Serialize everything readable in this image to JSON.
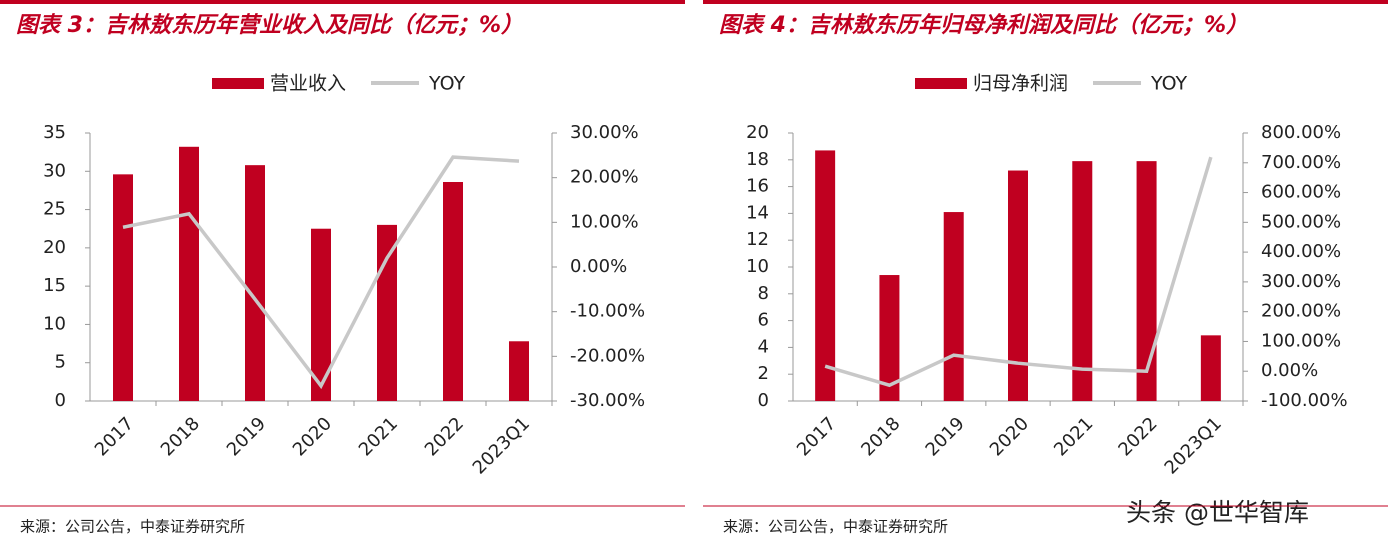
{
  "chart_data": [
    {
      "type": "bar",
      "title": "图表 3：吉林敖东历年营业收入及同比（亿元；%）",
      "categories": [
        "2017",
        "2018",
        "2019",
        "2020",
        "2021",
        "2022",
        "2023Q1"
      ],
      "series": [
        {
          "name": "营业收入",
          "color": "#c00020",
          "values": [
            29.6,
            33.2,
            30.8,
            22.5,
            23.0,
            28.6,
            7.8
          ]
        },
        {
          "name": "YOY",
          "color": "#c8c8c8",
          "type": "line",
          "axis": "y2",
          "values": [
            8.9,
            11.9,
            -7.2,
            -26.6,
            2.0,
            24.6,
            23.7
          ]
        }
      ],
      "ylim": [
        0,
        35
      ],
      "yticks": [
        0,
        5,
        10,
        15,
        20,
        25,
        30,
        35
      ],
      "y2lim": [
        -30,
        30
      ],
      "y2ticks": [
        {
          "value": -30,
          "label": "-30.00%"
        },
        {
          "value": -20,
          "label": "-20.00%"
        },
        {
          "value": -10,
          "label": "-10.00%"
        },
        {
          "value": 0,
          "label": "0.00%"
        },
        {
          "value": 10,
          "label": "10.00%"
        },
        {
          "value": 20,
          "label": "20.00%"
        },
        {
          "value": 30,
          "label": "30.00%"
        }
      ],
      "legend": "top",
      "source": "来源：公司公告，中泰证券研究所"
    },
    {
      "type": "bar",
      "title": "图表 4：吉林敖东历年归母净利润及同比（亿元；%）",
      "categories": [
        "2017",
        "2018",
        "2019",
        "2020",
        "2021",
        "2022",
        "2023Q1"
      ],
      "series": [
        {
          "name": "归母净利润",
          "color": "#c00020",
          "values": [
            18.7,
            9.4,
            14.1,
            17.2,
            17.9,
            17.9,
            4.9
          ]
        },
        {
          "name": "YOY",
          "color": "#c8c8c8",
          "type": "line",
          "axis": "y2",
          "values": [
            17,
            -47,
            54,
            27,
            7,
            0,
            719
          ]
        }
      ],
      "ylim": [
        0,
        20
      ],
      "yticks": [
        0,
        2,
        4,
        6,
        8,
        10,
        12,
        14,
        16,
        18,
        20
      ],
      "y2lim": [
        -100,
        800
      ],
      "y2ticks": [
        {
          "value": -100,
          "label": "-100.00%"
        },
        {
          "value": 0,
          "label": "0.00%"
        },
        {
          "value": 100,
          "label": "100.00%"
        },
        {
          "value": 200,
          "label": "200.00%"
        },
        {
          "value": 300,
          "label": "300.00%"
        },
        {
          "value": 400,
          "label": "400.00%"
        },
        {
          "value": 500,
          "label": "500.00%"
        },
        {
          "value": 600,
          "label": "600.00%"
        },
        {
          "value": 700,
          "label": "700.00%"
        },
        {
          "value": 800,
          "label": "800.00%"
        }
      ],
      "legend": "top",
      "source": "来源：公司公告，中泰证券研究所"
    }
  ],
  "watermark": "头条 @世华智库"
}
